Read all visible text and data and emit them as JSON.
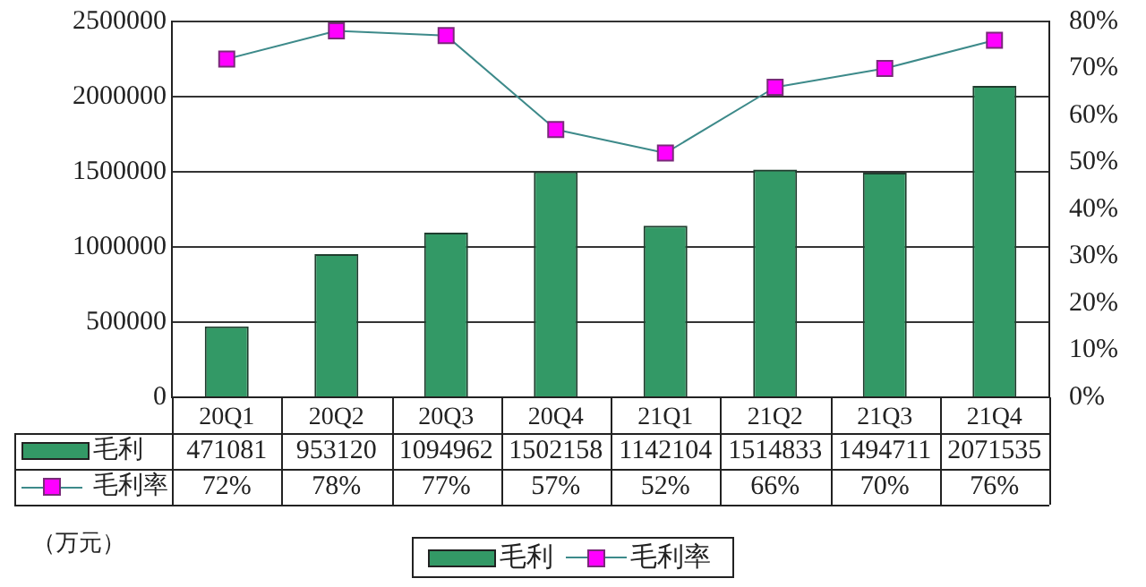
{
  "chart_data": {
    "type": "bar",
    "categories": [
      "20Q1",
      "20Q2",
      "20Q3",
      "20Q4",
      "21Q1",
      "21Q2",
      "21Q3",
      "21Q4"
    ],
    "series": [
      {
        "name": "毛利",
        "color": "#339966",
        "values": [
          471081,
          953120,
          1094962,
          1502158,
          1142104,
          1514833,
          1494711,
          2071535
        ],
        "value_labels": [
          "471081",
          "953120",
          "1094962",
          "1502158",
          "1142104",
          "1514833",
          "1494711",
          "2071535"
        ]
      },
      {
        "name": "毛利率",
        "type": "line",
        "axis": "y2",
        "color": "#ff00ff",
        "values": [
          72,
          78,
          77,
          57,
          52,
          66,
          70,
          76
        ],
        "value_labels": [
          "72%",
          "78%",
          "77%",
          "57%",
          "52%",
          "66%",
          "70%",
          "76%"
        ]
      }
    ],
    "ylim": [
      0,
      2500000
    ],
    "yticks": [
      0,
      500000,
      1000000,
      1500000,
      2000000,
      2500000
    ],
    "y2lim": [
      0,
      80
    ],
    "y2ticks": [
      {
        "value": 0,
        "label": "0%"
      },
      {
        "value": 10,
        "label": "10%"
      },
      {
        "value": 20,
        "label": "20%"
      },
      {
        "value": 30,
        "label": "30%"
      },
      {
        "value": 40,
        "label": "40%"
      },
      {
        "value": 50,
        "label": "50%"
      },
      {
        "value": 60,
        "label": "60%"
      },
      {
        "value": 70,
        "label": "70%"
      },
      {
        "value": 80,
        "label": "80%"
      }
    ],
    "grid": "y",
    "legend": "bottom",
    "marker": "square",
    "line_style": "solid",
    "annotations": [
      "（万元）"
    ]
  }
}
